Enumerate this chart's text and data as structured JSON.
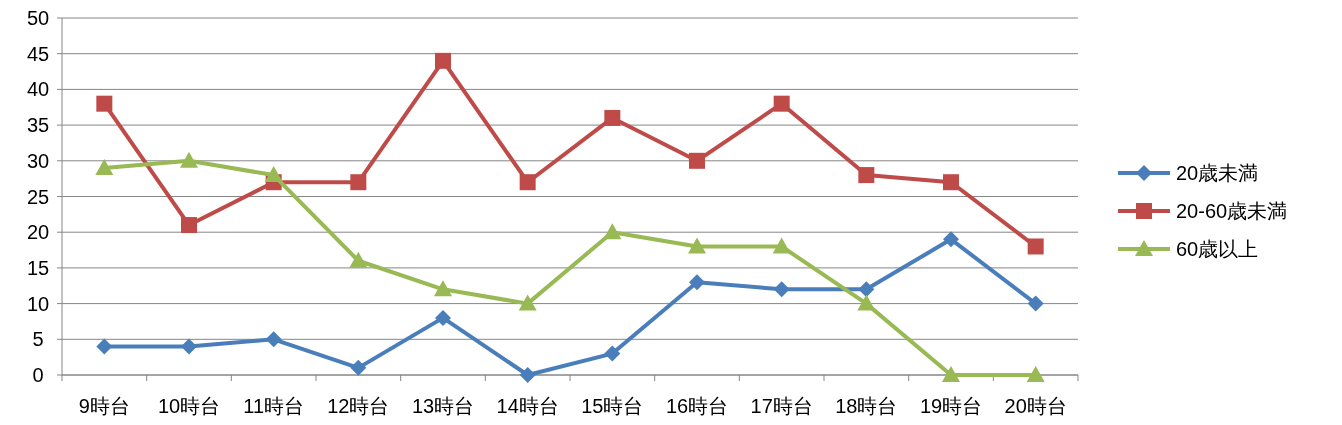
{
  "chart_data": {
    "type": "line",
    "categories": [
      "9時台",
      "10時台",
      "11時台",
      "12時台",
      "13時台",
      "14時台",
      "15時台",
      "16時台",
      "17時台",
      "18時台",
      "19時台",
      "20時台"
    ],
    "series": [
      {
        "name": "20歳未満",
        "color": "#4a7ebb",
        "marker": "diamond",
        "values": [
          4,
          4,
          5,
          1,
          8,
          0,
          3,
          13,
          12,
          12,
          19,
          10
        ]
      },
      {
        "name": "20-60歳未満",
        "color": "#be4b48",
        "marker": "square",
        "values": [
          38,
          21,
          27,
          27,
          44,
          27,
          36,
          30,
          38,
          28,
          27,
          18
        ]
      },
      {
        "name": "60歳以上",
        "color": "#98b954",
        "marker": "triangle",
        "values": [
          29,
          30,
          28,
          16,
          12,
          10,
          20,
          18,
          18,
          10,
          0,
          0
        ]
      }
    ],
    "ylim": [
      0,
      50
    ],
    "yticks": [
      0,
      5,
      10,
      15,
      20,
      25,
      30,
      35,
      40,
      45,
      50
    ],
    "grid": "y",
    "legend": "right",
    "line_style": "solid"
  }
}
